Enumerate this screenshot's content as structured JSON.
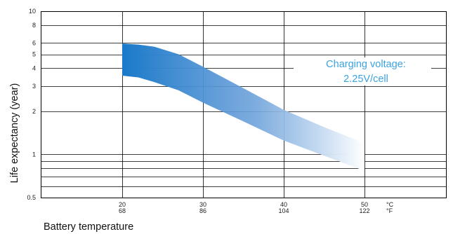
{
  "chart_data": {
    "type": "area",
    "title": "",
    "xlabel": "Battery temperature",
    "ylabel": "Life expectancy (year)",
    "y_scale": "log",
    "ylim": [
      0.5,
      10
    ],
    "xlim": [
      10,
      60
    ],
    "y_tick_labels": [
      "10",
      "8",
      "6",
      "5",
      "4",
      "3",
      "2",
      "1",
      "0.5"
    ],
    "y_gridlines": [
      0.6,
      0.7,
      0.8,
      0.9,
      1,
      2,
      3,
      4,
      5,
      6,
      8,
      10
    ],
    "x_ticks": [
      {
        "celsius": "20",
        "fahrenheit": "68"
      },
      {
        "celsius": "30",
        "fahrenheit": "86"
      },
      {
        "celsius": "40",
        "fahrenheit": "104"
      },
      {
        "celsius": "50",
        "fahrenheit": "122"
      }
    ],
    "x_unit_celsius": "°C",
    "x_unit_fahrenheit": "°F",
    "x_gridlines": [
      20,
      30,
      40,
      50
    ],
    "grid": true,
    "series": [
      {
        "x": [
          20,
          22,
          24,
          27,
          30,
          35,
          40,
          45,
          50
        ],
        "upper": [
          5.95,
          5.85,
          5.65,
          5.0,
          4.1,
          2.9,
          2.05,
          1.55,
          1.2
        ],
        "lower": [
          3.55,
          3.45,
          3.2,
          2.8,
          2.3,
          1.7,
          1.25,
          0.98,
          0.77
        ]
      }
    ],
    "annotation": [
      "Charging voltage:",
      "2.25V/cell"
    ],
    "colors": {
      "band_start": "#1a79c9",
      "band_end": "#ffffff",
      "annotation": "#3ba3e0",
      "grid": "#000000"
    }
  }
}
